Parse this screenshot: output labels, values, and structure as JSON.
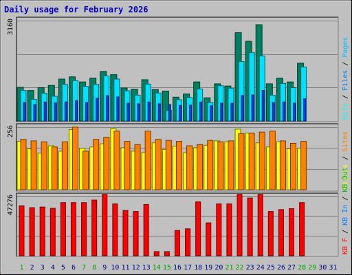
{
  "title": "Daily usage for February 2026",
  "colors": {
    "hits": "#00ffff",
    "files": "#0080ff",
    "pages": "#00c0ff",
    "visits": "#ffff00",
    "sites": "#ff8000",
    "kbf": "#ff0000",
    "kbin": "#0080ff",
    "kbout": "#00c000",
    "hits_bar": "#008060",
    "pages_bar": "#00e0ff",
    "files_bar": "#0040ff",
    "visits_bar": "#ffff00",
    "sites_bar": "#ff8000",
    "kb_bar": "#ff0000",
    "day_weekday": "#000080",
    "day_weekend": "#00a000",
    "plot_bg": "#c0c0c0",
    "title": "#0000c0"
  },
  "chart_data": [
    {
      "type": "bar",
      "name_label": "hits-files-pages",
      "ymax_label": "3160",
      "ylim": [
        0,
        3160
      ],
      "legend": [
        {
          "text": "Hits",
          "color": "hits"
        },
        {
          "text": "Files",
          "color": "files"
        },
        {
          "text": "Pages",
          "color": "pages"
        }
      ],
      "series": [
        {
          "name": "Hits",
          "values": [
            1060,
            960,
            1050,
            1120,
            1320,
            1390,
            1230,
            1350,
            1560,
            1460,
            1040,
            1000,
            1300,
            990,
            940,
            750,
            850,
            1230,
            730,
            1170,
            1100,
            2780,
            2510,
            3030,
            1170,
            1350,
            1230,
            1820
          ]
        },
        {
          "name": "Files",
          "values": [
            580,
            520,
            600,
            570,
            600,
            640,
            580,
            720,
            800,
            760,
            560,
            540,
            600,
            540,
            520,
            490,
            500,
            600,
            480,
            560,
            560,
            800,
            820,
            960,
            580,
            600,
            560,
            700
          ]
        },
        {
          "name": "Pages",
          "values": [
            960,
            680,
            870,
            780,
            1150,
            1270,
            1090,
            1150,
            1420,
            1320,
            950,
            810,
            1160,
            880,
            330,
            670,
            740,
            1010,
            580,
            1110,
            1030,
            1870,
            2150,
            2050,
            810,
            1180,
            1050,
            1700
          ]
        }
      ]
    },
    {
      "type": "bar",
      "name_label": "visits-sites",
      "ymax_label": "256",
      "ylim": [
        0,
        256
      ],
      "legend": [
        {
          "text": "Visits",
          "color": "visits"
        },
        {
          "text": "Sites",
          "color": "sites"
        }
      ],
      "series": [
        {
          "name": "Visits",
          "values": [
            198,
            168,
            150,
            180,
            158,
            246,
            170,
            175,
            188,
            250,
            172,
            158,
            152,
            192,
            165,
            178,
            152,
            172,
            182,
            200,
            196,
            248,
            232,
            192,
            175,
            196,
            168,
            170
          ]
        },
        {
          "name": "Sites",
          "values": [
            206,
            200,
            196,
            175,
            196,
            256,
            158,
            206,
            215,
            240,
            198,
            185,
            240,
            206,
            202,
            198,
            180,
            185,
            202,
            196,
            200,
            230,
            232,
            236,
            240,
            200,
            190,
            198
          ]
        }
      ]
    },
    {
      "type": "bar",
      "name_label": "kb",
      "ymax_label": "47276",
      "ylim": [
        0,
        47276
      ],
      "legend": [
        {
          "text": "KB F",
          "color": "kbf"
        },
        {
          "text": "KB In",
          "color": "kbin"
        },
        {
          "text": "KB Out",
          "color": "kbout"
        }
      ],
      "series": [
        {
          "name": "KB F",
          "values": [
            39500,
            38000,
            38500,
            37500,
            42000,
            42000,
            42000,
            44000,
            48500,
            41000,
            35800,
            35000,
            40500,
            3300,
            3300,
            20000,
            21300,
            42600,
            26000,
            41000,
            41000,
            48500,
            45600,
            48500,
            35000,
            36500,
            37200,
            42000
          ]
        }
      ]
    }
  ],
  "x_labels": [
    "1",
    "2",
    "3",
    "4",
    "5",
    "6",
    "7",
    "8",
    "9",
    "10",
    "11",
    "12",
    "13",
    "14",
    "15",
    "16",
    "17",
    "18",
    "19",
    "20",
    "21",
    "22",
    "23",
    "24",
    "25",
    "26",
    "27",
    "28",
    "29",
    "30",
    "31"
  ],
  "weekend_days": [
    1,
    7,
    8,
    14,
    15,
    21,
    22,
    28,
    29
  ]
}
